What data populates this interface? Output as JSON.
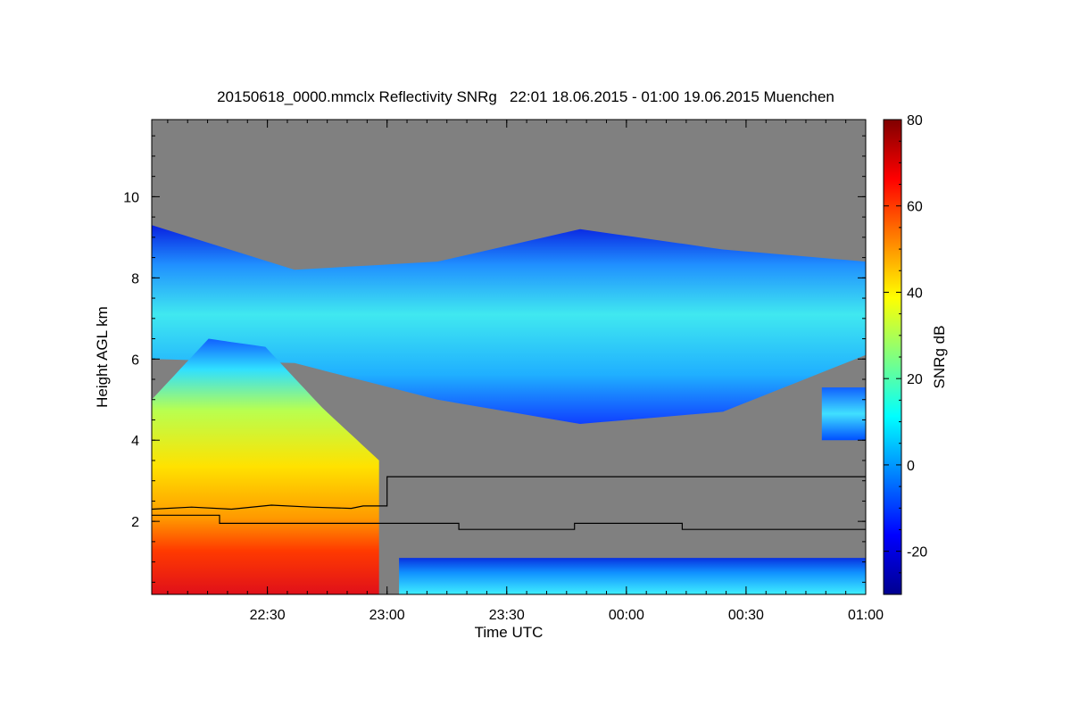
{
  "chart_data": {
    "type": "heatmap",
    "title": "20150618_0000.mmclx Reflectivity SNRg   22:01 18.06.2015 - 01:00 19.06.2015 Muenchen",
    "xlabel": "Time UTC",
    "ylabel": "Height AGL km",
    "colorbar_label": "SNRg dB",
    "x_range_minutes": [
      0,
      179
    ],
    "x_ticks": [
      {
        "label": "22:30",
        "minutes": 29
      },
      {
        "label": "23:00",
        "minutes": 59
      },
      {
        "label": "23:30",
        "minutes": 89
      },
      {
        "label": "00:00",
        "minutes": 119
      },
      {
        "label": "00:30",
        "minutes": 149
      },
      {
        "label": "01:00",
        "minutes": 179
      }
    ],
    "ylim": [
      0.2,
      11.9
    ],
    "y_ticks": [
      2,
      4,
      6,
      8,
      10
    ],
    "colorbar_range": [
      -30,
      80
    ],
    "colorbar_ticks": [
      -20,
      0,
      20,
      40,
      60,
      80
    ],
    "background_color": "#808080",
    "colormap": [
      "#00008f",
      "#0000ff",
      "#0080ff",
      "#00ffff",
      "#80ff80",
      "#ffff00",
      "#ff8000",
      "#ff0000",
      "#800000"
    ],
    "echo_regions": [
      {
        "name": "upper_cloud_layer",
        "x_minutes": [
          0,
          179
        ],
        "base_km": [
          6.0,
          5.9,
          5.0,
          4.4,
          4.7,
          6.1
        ],
        "top_km": [
          9.3,
          8.2,
          8.4,
          9.2,
          8.7,
          8.4
        ],
        "peak_snr_db": 25
      },
      {
        "name": "precipitation_shaft",
        "x_minutes": [
          0,
          57
        ],
        "base_km": 0.2,
        "top_km": [
          5.0,
          6.5,
          6.3,
          4.8,
          3.5
        ],
        "peak_snr_db": 72
      },
      {
        "name": "isolated_cloud",
        "x_minutes": [
          168,
          179
        ],
        "base_km": 4.0,
        "top_km": 5.3,
        "peak_snr_db": 15
      },
      {
        "name": "boundary_layer_clutter",
        "x_minutes": [
          62,
          179
        ],
        "base_km": 0.2,
        "top_km": 1.1,
        "peak_snr_db": 15
      }
    ],
    "lines": [
      {
        "name": "upper_line",
        "color": "#000000",
        "points": [
          [
            0,
            2.3
          ],
          [
            10,
            2.35
          ],
          [
            20,
            2.3
          ],
          [
            30,
            2.4
          ],
          [
            40,
            2.35
          ],
          [
            50,
            2.32
          ],
          [
            53,
            2.38
          ],
          [
            59,
            2.38
          ],
          [
            59,
            3.1
          ],
          [
            179,
            3.1
          ]
        ]
      },
      {
        "name": "lower_line",
        "color": "#000000",
        "points": [
          [
            0,
            2.15
          ],
          [
            17,
            2.15
          ],
          [
            17,
            1.95
          ],
          [
            77,
            1.95
          ],
          [
            77,
            1.8
          ],
          [
            106,
            1.8
          ],
          [
            106,
            1.95
          ],
          [
            133,
            1.95
          ],
          [
            133,
            1.8
          ],
          [
            179,
            1.8
          ]
        ]
      }
    ]
  }
}
